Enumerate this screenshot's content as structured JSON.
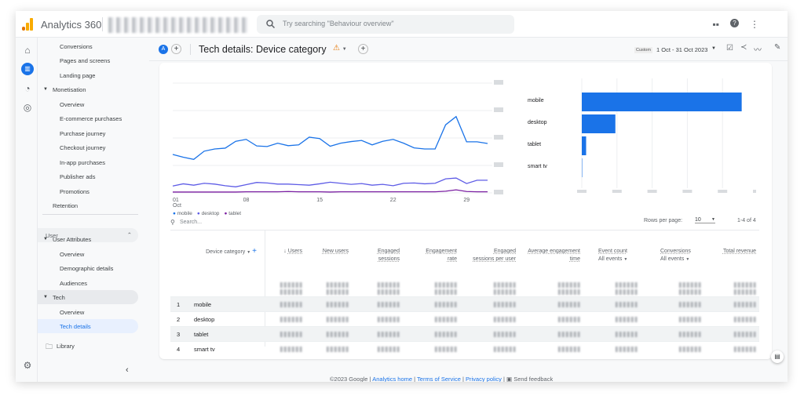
{
  "header": {
    "app_name": "Analytics 360",
    "search_placeholder": "Try searching \"Behaviour overview\"",
    "icons": [
      "apps-grid-icon",
      "help-icon",
      "more-vert-icon"
    ]
  },
  "rail": {
    "icons": [
      "home-icon",
      "reports-icon",
      "explore-icon",
      "advertising-icon",
      "settings-icon"
    ]
  },
  "sidebar": {
    "items": [
      {
        "label": "Conversions",
        "level": 2
      },
      {
        "label": "Pages and screens",
        "level": 2
      },
      {
        "label": "Landing page",
        "level": 2
      },
      {
        "label": "Monetisation",
        "level": 1,
        "expanded": true
      },
      {
        "label": "Overview",
        "level": 2
      },
      {
        "label": "E-commerce purchases",
        "level": 2
      },
      {
        "label": "Purchase journey",
        "level": 2
      },
      {
        "label": "Checkout journey",
        "level": 2
      },
      {
        "label": "In-app purchases",
        "level": 2
      },
      {
        "label": "Publisher ads",
        "level": 2
      },
      {
        "label": "Promotions",
        "level": 2
      },
      {
        "label": "Retention",
        "level": 1
      }
    ],
    "section": "User",
    "user_items": [
      {
        "label": "User Attributes",
        "level": 1,
        "expanded": true
      },
      {
        "label": "Overview",
        "level": 2
      },
      {
        "label": "Demographic details",
        "level": 2
      },
      {
        "label": "Audiences",
        "level": 2
      },
      {
        "label": "Tech",
        "level": 1,
        "expanded": true
      },
      {
        "label": "Overview",
        "level": 2
      },
      {
        "label": "Tech details",
        "level": 2,
        "selected": true
      }
    ],
    "library": "Library"
  },
  "titlebar": {
    "segment_badge": "A",
    "title": "Tech details: Device category",
    "date_label": "Custom",
    "date_range": "1 Oct - 31 Oct 2023"
  },
  "colors": {
    "mobile": "#1a73e8",
    "desktop": "#5e5ce6",
    "tablet": "#7b1fa2",
    "accent": "#1a73e8"
  },
  "chart_data": [
    {
      "type": "line",
      "x_ticks": [
        "01",
        "08",
        "15",
        "22",
        "29"
      ],
      "x_sub": "Oct",
      "x": [
        1,
        2,
        3,
        4,
        5,
        6,
        7,
        8,
        9,
        10,
        11,
        12,
        13,
        14,
        15,
        16,
        17,
        18,
        19,
        20,
        21,
        22,
        23,
        24,
        25,
        26,
        27,
        28,
        29,
        30,
        31
      ],
      "grid": true,
      "legend": "bottom-left",
      "series": [
        {
          "name": "mobile",
          "values": [
            1.4,
            1.3,
            1.22,
            1.52,
            1.6,
            1.63,
            1.88,
            1.95,
            1.71,
            1.69,
            1.81,
            1.72,
            1.75,
            2.03,
            1.98,
            1.7,
            1.81,
            1.87,
            1.91,
            1.75,
            1.88,
            1.95,
            1.81,
            1.64,
            1.6,
            1.6,
            2.48,
            2.78,
            1.86,
            1.86,
            1.8
          ]
        },
        {
          "name": "desktop",
          "values": [
            0.25,
            0.33,
            0.28,
            0.35,
            0.32,
            0.26,
            0.22,
            0.3,
            0.38,
            0.36,
            0.32,
            0.32,
            0.3,
            0.28,
            0.33,
            0.39,
            0.35,
            0.31,
            0.34,
            0.28,
            0.31,
            0.26,
            0.35,
            0.36,
            0.33,
            0.35,
            0.51,
            0.54,
            0.34,
            0.46,
            0.46
          ]
        },
        {
          "name": "tablet",
          "values": [
            0.03,
            0.03,
            0.03,
            0.03,
            0.03,
            0.03,
            0.03,
            0.04,
            0.04,
            0.04,
            0.04,
            0.05,
            0.04,
            0.04,
            0.04,
            0.03,
            0.04,
            0.04,
            0.04,
            0.04,
            0.04,
            0.04,
            0.04,
            0.04,
            0.04,
            0.04,
            0.06,
            0.11,
            0.05,
            0.04,
            0.04
          ]
        }
      ],
      "ylim": [
        0,
        4
      ]
    },
    {
      "type": "bar",
      "orientation": "horizontal",
      "categories": [
        "mobile",
        "desktop",
        "tablet",
        "smart tv"
      ],
      "values": [
        1.0,
        0.21,
        0.027,
        0.001
      ],
      "xlim": [
        0,
        1.1
      ]
    }
  ],
  "table": {
    "search_placeholder": "Search...",
    "rows_per_page_label": "Rows per page:",
    "rows_per_page": "10",
    "pagination": "1-4 of 4",
    "dimension_header": "Device category",
    "columns": [
      {
        "label": "Users",
        "sorted": true
      },
      {
        "label": "New users"
      },
      {
        "label": "Engaged sessions"
      },
      {
        "label": "Engagement rate"
      },
      {
        "label": "Engaged sessions per user"
      },
      {
        "label": "Average engagement time"
      },
      {
        "label": "Event count",
        "sub": "All events"
      },
      {
        "label": "Conversions",
        "sub": "All events"
      },
      {
        "label": "Total revenue"
      }
    ],
    "rows": [
      {
        "index": "1",
        "device": "mobile"
      },
      {
        "index": "2",
        "device": "desktop"
      },
      {
        "index": "3",
        "device": "tablet"
      },
      {
        "index": "4",
        "device": "smart tv"
      }
    ]
  },
  "footer": {
    "copyright": "©2023 Google",
    "links": [
      "Analytics home",
      "Terms of Service",
      "Privacy policy"
    ],
    "feedback": "Send feedback"
  }
}
